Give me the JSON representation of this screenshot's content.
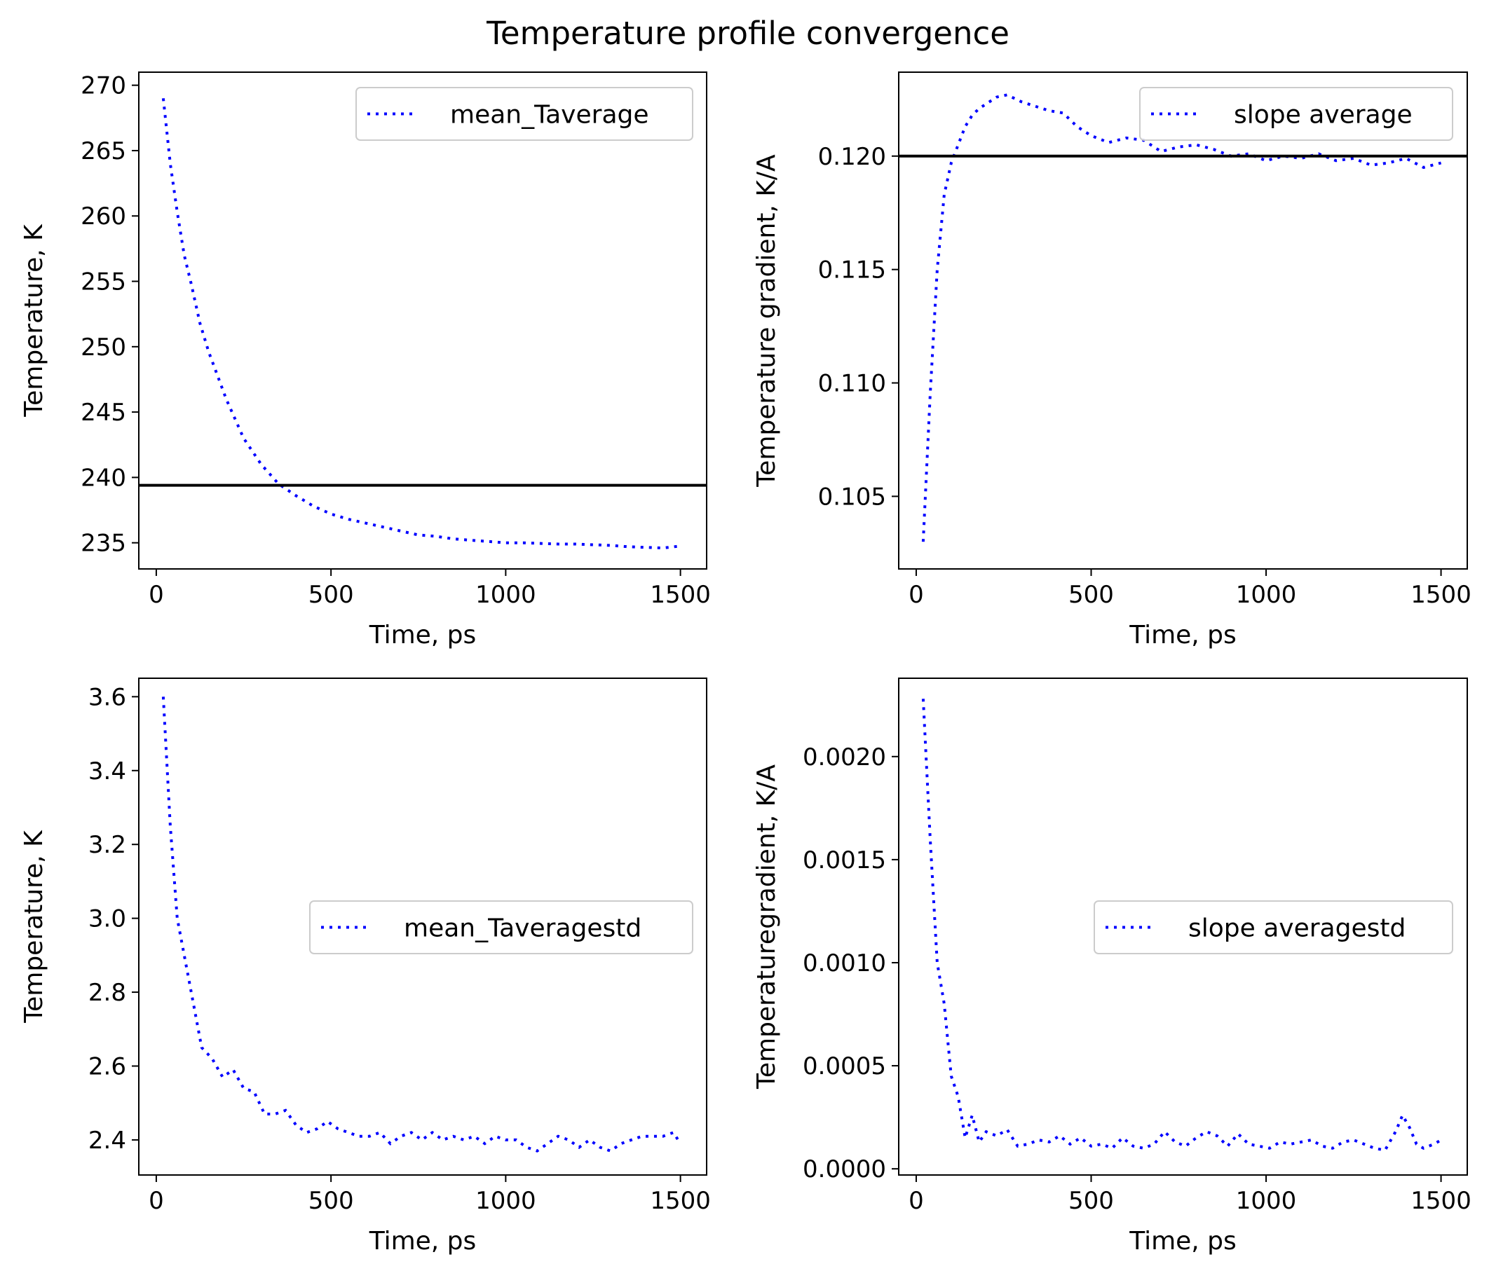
{
  "figure_title": "Temperature profile convergence",
  "chart_data": [
    {
      "id": "panel-mean-temperature",
      "type": "line",
      "title": "",
      "xlabel": "Time, ps",
      "ylabel": "Temperature, K",
      "xlim": [
        -50,
        1575
      ],
      "ylim": [
        233,
        271
      ],
      "xticks": [
        0,
        500,
        1000,
        1500
      ],
      "xtick_labels": [
        "0",
        "500",
        "1000",
        "1500"
      ],
      "yticks": [
        235,
        240,
        245,
        250,
        255,
        260,
        265,
        270
      ],
      "ytick_labels": [
        "235",
        "240",
        "245",
        "250",
        "255",
        "260",
        "265",
        "270"
      ],
      "grid": false,
      "legend": "upper right",
      "hline": 239.4,
      "series": [
        {
          "name": "mean_Taverage",
          "color": "#0000ff",
          "style": "dotted",
          "x": [
            20,
            40,
            60,
            80,
            100,
            125,
            150,
            175,
            200,
            250,
            300,
            350,
            400,
            450,
            500,
            550,
            600,
            650,
            700,
            750,
            800,
            850,
            900,
            950,
            1000,
            1050,
            1100,
            1150,
            1200,
            1250,
            1300,
            1350,
            1400,
            1450,
            1500
          ],
          "y": [
            269.0,
            264.0,
            260.3,
            257.0,
            254.8,
            251.8,
            249.6,
            247.8,
            246.0,
            243.0,
            241.0,
            239.5,
            238.6,
            237.8,
            237.2,
            236.8,
            236.5,
            236.2,
            235.9,
            235.6,
            235.5,
            235.3,
            235.2,
            235.1,
            235.0,
            235.0,
            234.95,
            234.9,
            234.9,
            234.85,
            234.8,
            234.7,
            234.65,
            234.6,
            234.75
          ]
        }
      ]
    },
    {
      "id": "panel-slope-average",
      "type": "line",
      "title": "",
      "xlabel": "Time, ps",
      "ylabel": "Temperature gradient, K/A",
      "xlim": [
        -50,
        1575
      ],
      "ylim": [
        0.1018,
        0.1237
      ],
      "xticks": [
        0,
        500,
        1000,
        1500
      ],
      "xtick_labels": [
        "0",
        "500",
        "1000",
        "1500"
      ],
      "yticks": [
        0.105,
        0.11,
        0.115,
        0.12
      ],
      "ytick_labels": [
        "0.105",
        "0.110",
        "0.115",
        "0.120"
      ],
      "grid": false,
      "legend": "upper right",
      "hline": 0.12,
      "series": [
        {
          "name": "slope average",
          "color": "#0000ff",
          "style": "dotted",
          "x": [
            20,
            40,
            60,
            80,
            100,
            120,
            140,
            160,
            180,
            200,
            230,
            260,
            300,
            340,
            380,
            420,
            460,
            500,
            550,
            600,
            650,
            700,
            750,
            800,
            850,
            900,
            950,
            1000,
            1050,
            1100,
            1150,
            1200,
            1250,
            1300,
            1350,
            1400,
            1450,
            1500
          ],
          "y": [
            0.103,
            0.1095,
            0.115,
            0.1183,
            0.1197,
            0.1205,
            0.1213,
            0.1218,
            0.1221,
            0.1223,
            0.1226,
            0.1227,
            0.1224,
            0.1222,
            0.122,
            0.1219,
            0.1213,
            0.1209,
            0.1206,
            0.1208,
            0.1207,
            0.1202,
            0.1204,
            0.1205,
            0.1203,
            0.12,
            0.1201,
            0.1198,
            0.12,
            0.1199,
            0.1201,
            0.1198,
            0.1199,
            0.1196,
            0.1197,
            0.1199,
            0.1195,
            0.1197
          ]
        }
      ]
    },
    {
      "id": "panel-mean-temperature-std",
      "type": "line",
      "title": "",
      "xlabel": "Time, ps",
      "ylabel": "Temperature, K",
      "xlim": [
        -50,
        1575
      ],
      "ylim": [
        2.305,
        3.65
      ],
      "xticks": [
        0,
        500,
        1000,
        1500
      ],
      "xtick_labels": [
        "0",
        "500",
        "1000",
        "1500"
      ],
      "yticks": [
        2.4,
        2.6,
        2.8,
        3.0,
        3.2,
        3.4,
        3.6
      ],
      "ytick_labels": [
        "2.4",
        "2.6",
        "2.8",
        "3.0",
        "3.2",
        "3.4",
        "3.6"
      ],
      "grid": false,
      "legend": "center right",
      "series": [
        {
          "name": "mean_Taveragestd",
          "color": "#0000ff",
          "style": "dotted",
          "x": [
            20,
            40,
            60,
            80,
            100,
            130,
            160,
            190,
            220,
            250,
            280,
            310,
            340,
            370,
            400,
            430,
            460,
            490,
            520,
            550,
            580,
            610,
            640,
            670,
            700,
            730,
            760,
            790,
            820,
            850,
            880,
            910,
            940,
            970,
            1000,
            1030,
            1060,
            1090,
            1120,
            1150,
            1180,
            1210,
            1240,
            1270,
            1300,
            1330,
            1360,
            1390,
            1420,
            1450,
            1480,
            1500
          ],
          "y": [
            3.6,
            3.25,
            3.0,
            2.9,
            2.8,
            2.65,
            2.62,
            2.57,
            2.59,
            2.54,
            2.53,
            2.47,
            2.47,
            2.48,
            2.44,
            2.42,
            2.43,
            2.45,
            2.43,
            2.42,
            2.41,
            2.41,
            2.42,
            2.39,
            2.41,
            2.42,
            2.4,
            2.42,
            2.4,
            2.41,
            2.4,
            2.41,
            2.39,
            2.41,
            2.4,
            2.4,
            2.38,
            2.37,
            2.39,
            2.41,
            2.4,
            2.38,
            2.4,
            2.38,
            2.37,
            2.39,
            2.4,
            2.41,
            2.41,
            2.41,
            2.42,
            2.39
          ]
        }
      ]
    },
    {
      "id": "panel-slope-average-std",
      "type": "line",
      "title": "",
      "xlabel": "Time, ps",
      "ylabel": "Temperaturegradient, K/A",
      "xlim": [
        -50,
        1575
      ],
      "ylim": [
        -3e-05,
        0.00238
      ],
      "xticks": [
        0,
        500,
        1000,
        1500
      ],
      "xtick_labels": [
        "0",
        "500",
        "1000",
        "1500"
      ],
      "yticks": [
        0.0,
        0.0005,
        0.001,
        0.0015,
        0.002
      ],
      "ytick_labels": [
        "0.0000",
        "0.0005",
        "0.0010",
        "0.0015",
        "0.0020"
      ],
      "grid": false,
      "legend": "center right",
      "series": [
        {
          "name": "slope averagestd",
          "color": "#0000ff",
          "style": "dotted",
          "x": [
            20,
            40,
            60,
            80,
            100,
            120,
            140,
            160,
            180,
            200,
            230,
            260,
            290,
            320,
            350,
            380,
            410,
            440,
            470,
            500,
            530,
            560,
            590,
            620,
            650,
            680,
            710,
            740,
            770,
            800,
            830,
            860,
            890,
            920,
            950,
            980,
            1010,
            1040,
            1070,
            1100,
            1130,
            1160,
            1190,
            1220,
            1250,
            1280,
            1310,
            1340,
            1370,
            1390,
            1410,
            1430,
            1450,
            1480,
            1500
          ],
          "y": [
            0.00228,
            0.0016,
            0.001,
            0.0008,
            0.00045,
            0.00035,
            0.00015,
            0.00026,
            0.00013,
            0.00018,
            0.00016,
            0.00019,
            0.00011,
            0.00012,
            0.00014,
            0.00013,
            0.00016,
            0.00012,
            0.00015,
            0.00011,
            0.00012,
            0.0001,
            0.00015,
            0.00011,
            0.0001,
            0.00012,
            0.00018,
            0.00013,
            0.00011,
            0.00015,
            0.00018,
            0.00016,
            0.00011,
            0.00017,
            0.00012,
            0.00011,
            0.0001,
            0.00013,
            0.00012,
            0.00013,
            0.00014,
            0.00011,
            0.0001,
            0.00013,
            0.00014,
            0.00012,
            0.0001,
            9e-05,
            0.00018,
            0.00026,
            0.0002,
            0.00012,
            0.0001,
            0.00012,
            0.00014
          ]
        }
      ]
    }
  ]
}
